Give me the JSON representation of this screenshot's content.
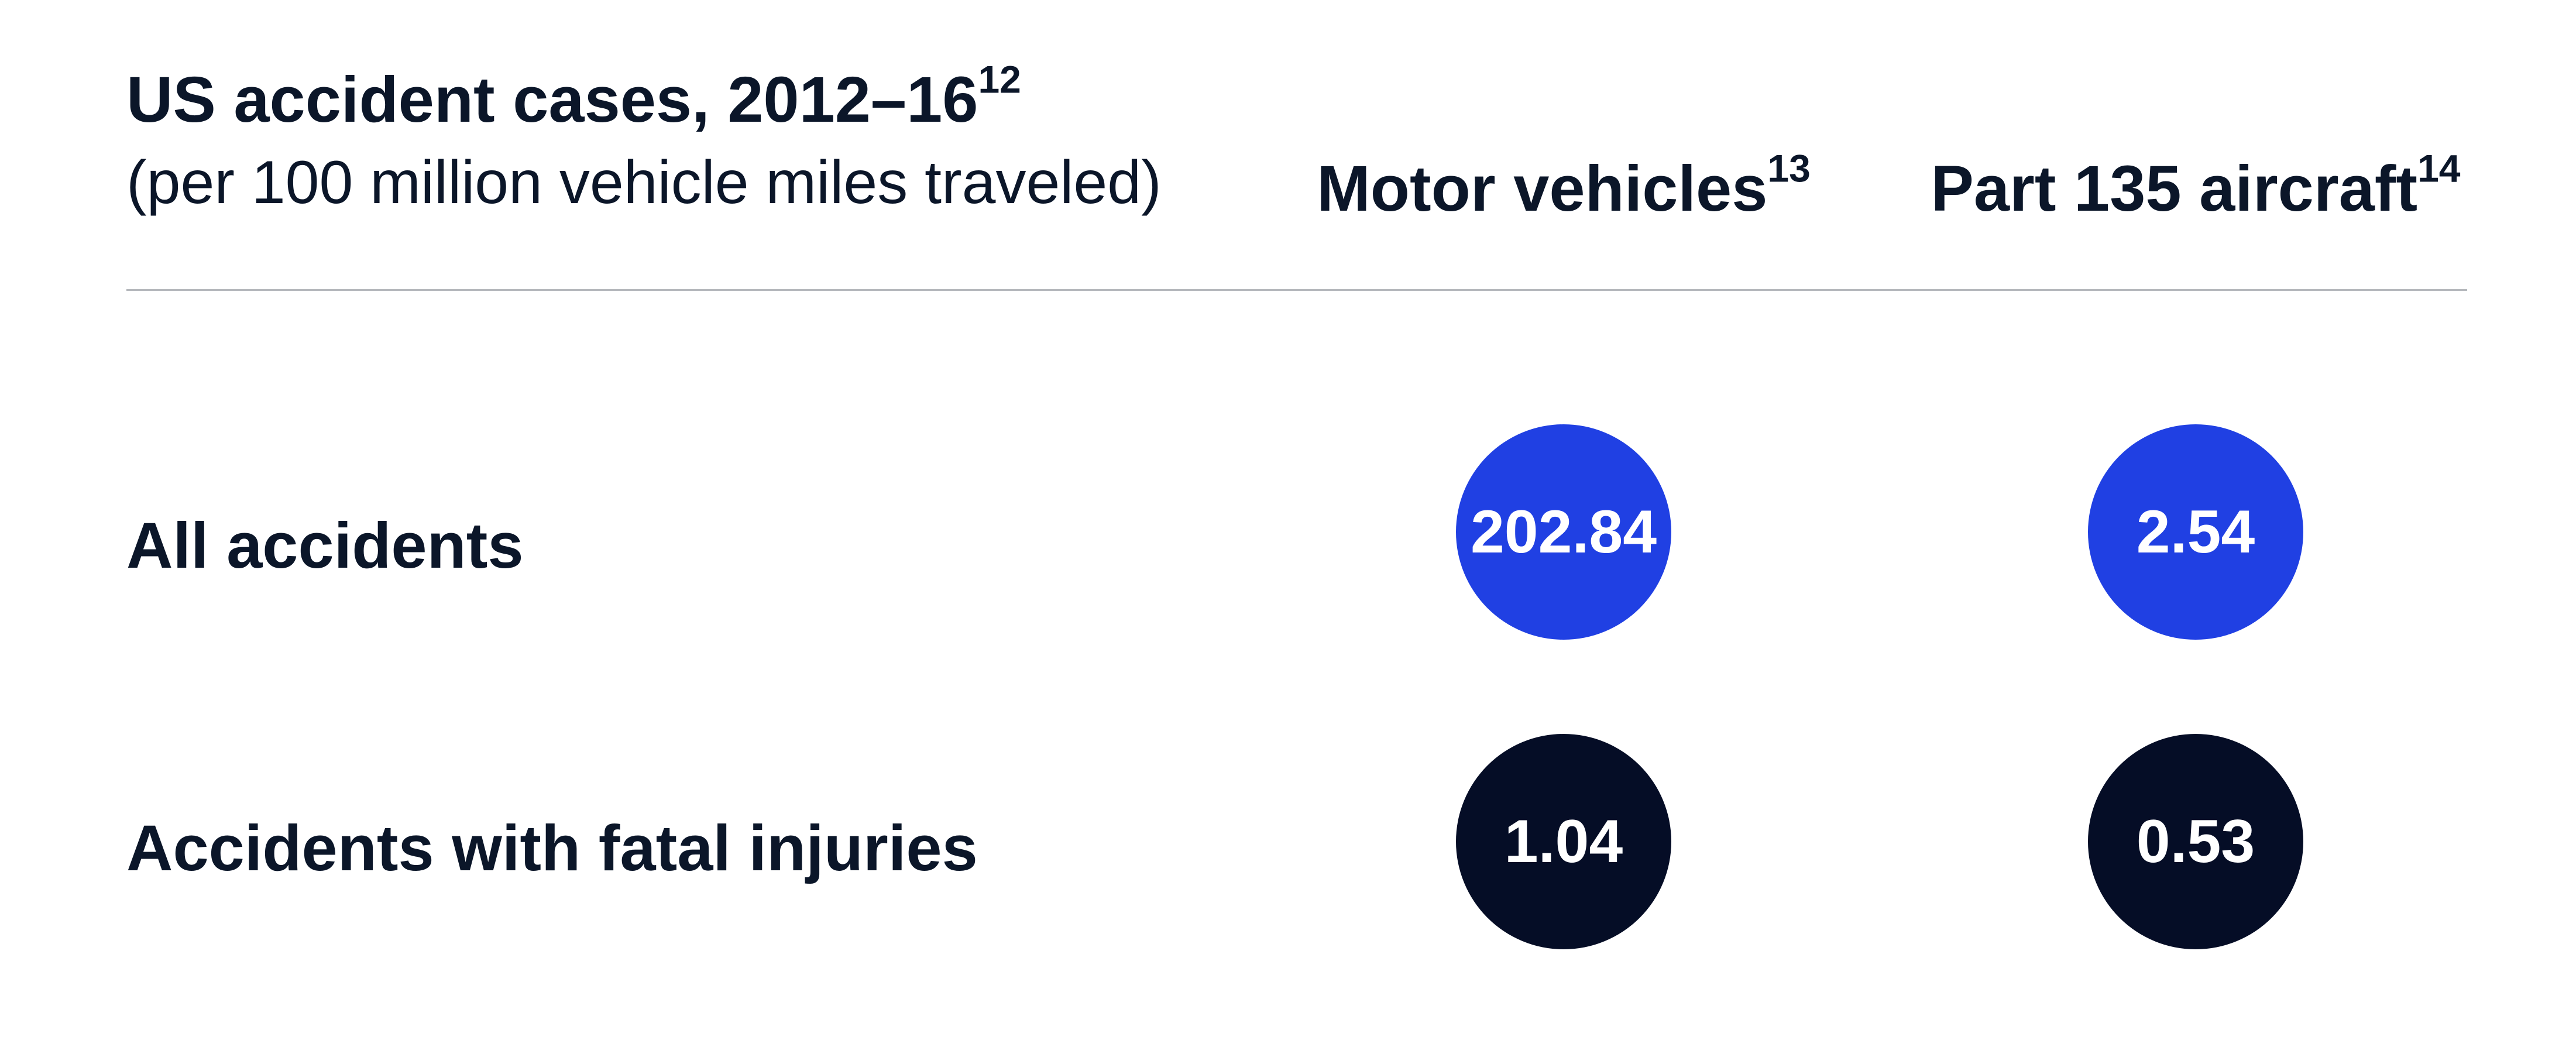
{
  "colors": {
    "accent": "#2040e3",
    "dark": "#050d26",
    "text": "#0b1629",
    "rule": "#b5b8bc"
  },
  "chart_data": {
    "type": "table",
    "title": "US accident cases, 2012–16",
    "title_footnote": "12",
    "subtitle": "(per 100 million vehicle miles traveled)",
    "columns": [
      {
        "label": "Motor vehicles",
        "footnote": "13"
      },
      {
        "label": "Part 135 aircraft",
        "footnote": "14"
      }
    ],
    "rows": [
      {
        "label": "All accidents",
        "values": [
          "202.84",
          "2.54"
        ],
        "color": "accent"
      },
      {
        "label": "Accidents with fatal injuries",
        "values": [
          "1.04",
          "0.53"
        ],
        "color": "dark"
      }
    ]
  }
}
